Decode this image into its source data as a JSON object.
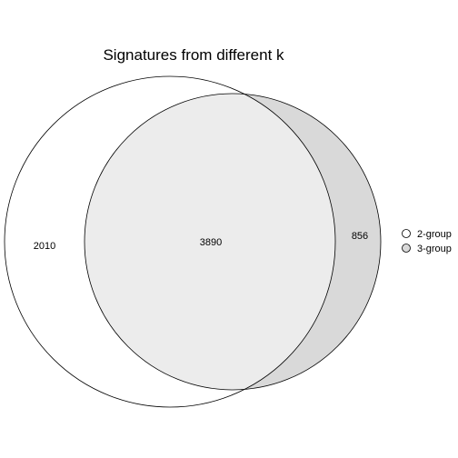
{
  "title": "Signatures from different k",
  "sets": [
    {
      "name": "2-group",
      "color": "#ffffff"
    },
    {
      "name": "3-group",
      "color": "#d9d9d9"
    }
  ],
  "regions": {
    "only_2_group": "2010",
    "both": "3890",
    "only_3_group": "856"
  },
  "colors": {
    "only_3_group_fill": "#d9d9d9",
    "intersection_fill": "#ececec",
    "outline": "#000000"
  }
}
